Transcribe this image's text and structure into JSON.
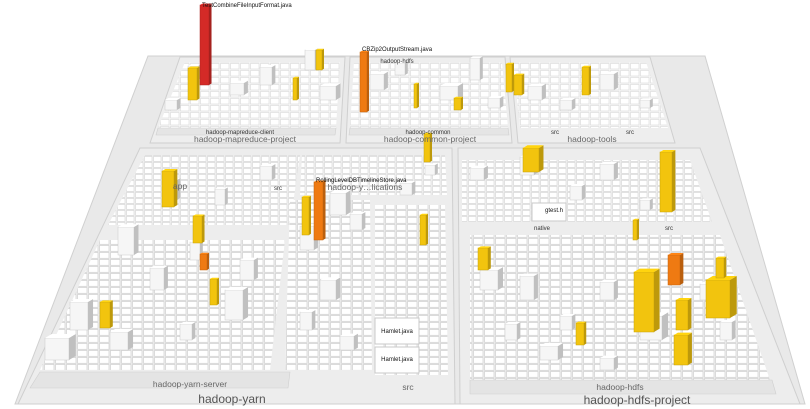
{
  "labels": {
    "hadoop_mapreduce_project": "hadoop-mapreduce-project",
    "hadoop_mapreduce_client": "hadoop-mapreduce-client",
    "hadoop_common_project": "hadoop-common-project",
    "hadoop_common": "hadoop-common",
    "hadoop_tools": "hadoop-tools",
    "src_tools_1": "src",
    "src_tools_2": "src",
    "hadoop_hdfs_top": "hadoop-hdfs",
    "app": "app",
    "src_yarn_mid": "src",
    "hadoop_yarn_applications": "hadoop-y…lications",
    "native": "native",
    "gtest_h": "gtest.h",
    "src_hdfs_right": "src",
    "hadoop_yarn_server": "hadoop-yarn-server",
    "hadoop_yarn": "hadoop-yarn",
    "src_bottom": "src",
    "hadoop_hdfs": "hadoop-hdfs",
    "hadoop_hdfs_project": "hadoop-hdfs-project",
    "hamlet_1": "Hamlet.java",
    "hamlet_2": "Hamlet.java"
  },
  "hotspots": [
    {
      "name": "TestCombineFileInputFormat.java",
      "color": "#d42a27"
    },
    {
      "name": "CBZip2OutputStream.java",
      "color": "#ef7a12"
    },
    {
      "name": "RollingLevelDBTimelineStore.java",
      "color": "#ef7a12"
    }
  ],
  "colors": {
    "red": "#d42a27",
    "orange": "#ef7a12",
    "yellow": "#f2c40e",
    "platform": "#ececec",
    "building": "#f7f7f7"
  }
}
